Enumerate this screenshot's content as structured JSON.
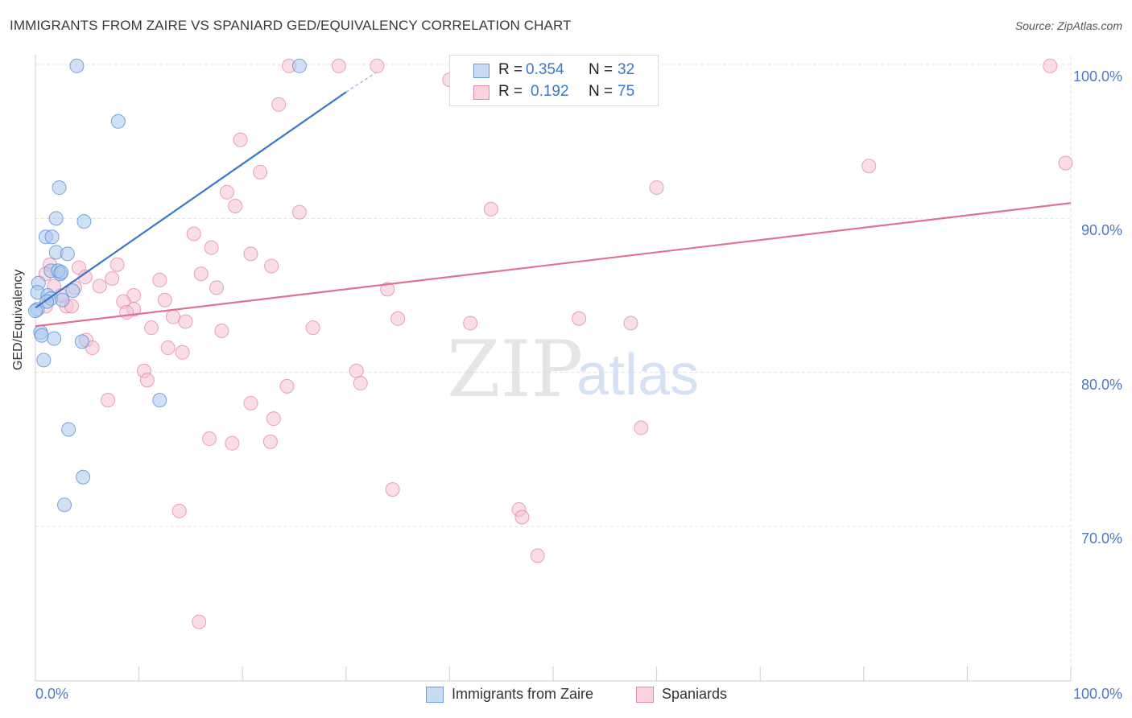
{
  "title": "IMMIGRANTS FROM ZAIRE VS SPANIARD GED/EQUIVALENCY CORRELATION CHART",
  "source": "Source: ZipAtlas.com",
  "watermark": {
    "zip": "ZIP",
    "atlas": "atlas"
  },
  "legend_top": {
    "rows": [
      {
        "r_label": "R =",
        "r_value": "0.354",
        "n_label": "N =",
        "n_value": "32"
      },
      {
        "r_label": "R =",
        "r_value": "0.192",
        "n_label": "N =",
        "n_value": "75"
      }
    ]
  },
  "legend_bottom": {
    "items": [
      {
        "label": "Immigrants from Zaire"
      },
      {
        "label": "Spaniards"
      }
    ]
  },
  "chart_data": {
    "type": "scatter",
    "title": "IMMIGRANTS FROM ZAIRE VS SPANIARD GED/EQUIVALENCY CORRELATION CHART",
    "xlabel": "",
    "ylabel": "GED/Equivalency",
    "xlim": [
      0,
      100
    ],
    "ylim": [
      60,
      100
    ],
    "x_tick_labels": [
      "0.0%",
      "100.0%"
    ],
    "y_ticks": [
      {
        "value": 100,
        "label": "100.0%"
      },
      {
        "value": 90,
        "label": "90.0%"
      },
      {
        "value": 80,
        "label": "80.0%"
      },
      {
        "value": 70,
        "label": "70.0%"
      }
    ],
    "grid": true,
    "legend_position": "bottom",
    "colors": {
      "series1_fill": "#a9c8ef",
      "series1_stroke": "#5b8fd6",
      "series1_line": "#3a77cf",
      "series2_fill": "#f6c3d3",
      "series2_stroke": "#e58aa8",
      "series2_line": "#e07097",
      "tick_text": "#4a7cc4",
      "grid": "#e3e3e3"
    },
    "series": [
      {
        "name": "Immigrants from Zaire",
        "r": 0.354,
        "n": 32,
        "trend": {
          "x": [
            0,
            30
          ],
          "y": [
            84.2,
            98.2
          ],
          "dash_to": [
            33.2,
            99.6
          ]
        },
        "points": [
          [
            4.0,
            99.9
          ],
          [
            25.5,
            99.9
          ],
          [
            8.0,
            96.3
          ],
          [
            2.3,
            92.0
          ],
          [
            2.0,
            90.0
          ],
          [
            4.7,
            89.8
          ],
          [
            1.0,
            88.8
          ],
          [
            1.6,
            88.8
          ],
          [
            2.0,
            87.8
          ],
          [
            3.1,
            87.7
          ],
          [
            1.5,
            86.6
          ],
          [
            2.4,
            86.4
          ],
          [
            2.2,
            86.6
          ],
          [
            2.5,
            86.5
          ],
          [
            0.3,
            85.8
          ],
          [
            0.2,
            85.2
          ],
          [
            1.2,
            85.0
          ],
          [
            3.6,
            85.3
          ],
          [
            1.5,
            84.8
          ],
          [
            2.6,
            84.7
          ],
          [
            1.1,
            84.6
          ],
          [
            0.2,
            84.1
          ],
          [
            0.5,
            82.6
          ],
          [
            0.6,
            82.4
          ],
          [
            1.8,
            82.2
          ],
          [
            4.5,
            82.0
          ],
          [
            0.8,
            80.8
          ],
          [
            12.0,
            78.2
          ],
          [
            3.2,
            76.3
          ],
          [
            4.6,
            73.2
          ],
          [
            2.8,
            71.4
          ],
          [
            0.0,
            84.0
          ]
        ]
      },
      {
        "name": "Spaniards",
        "r": 0.192,
        "n": 75,
        "trend": {
          "x": [
            0,
            100
          ],
          "y": [
            83.0,
            91.0
          ]
        },
        "points": [
          [
            24.5,
            99.9
          ],
          [
            29.3,
            99.9
          ],
          [
            33.0,
            99.9
          ],
          [
            40.8,
            99.9
          ],
          [
            98.0,
            99.9
          ],
          [
            45.0,
            99.9
          ],
          [
            23.5,
            97.4
          ],
          [
            19.8,
            95.1
          ],
          [
            21.7,
            93.0
          ],
          [
            60.0,
            92.0
          ],
          [
            80.5,
            93.4
          ],
          [
            99.5,
            93.6
          ],
          [
            18.5,
            91.7
          ],
          [
            19.3,
            90.8
          ],
          [
            25.5,
            90.4
          ],
          [
            44.0,
            90.6
          ],
          [
            15.3,
            89.0
          ],
          [
            17.0,
            88.1
          ],
          [
            20.8,
            87.7
          ],
          [
            7.9,
            87.0
          ],
          [
            22.8,
            86.9
          ],
          [
            1.4,
            87.0
          ],
          [
            4.2,
            86.8
          ],
          [
            1.0,
            86.4
          ],
          [
            16.0,
            86.4
          ],
          [
            4.8,
            86.2
          ],
          [
            7.4,
            86.1
          ],
          [
            12.0,
            86.0
          ],
          [
            1.8,
            85.6
          ],
          [
            6.2,
            85.6
          ],
          [
            3.8,
            85.5
          ],
          [
            17.5,
            85.5
          ],
          [
            34.0,
            85.4
          ],
          [
            9.5,
            85.0
          ],
          [
            8.5,
            84.6
          ],
          [
            12.5,
            84.7
          ],
          [
            1.0,
            84.3
          ],
          [
            3.0,
            84.3
          ],
          [
            3.5,
            84.3
          ],
          [
            9.5,
            84.1
          ],
          [
            8.8,
            83.9
          ],
          [
            13.3,
            83.6
          ],
          [
            14.5,
            83.3
          ],
          [
            35.0,
            83.5
          ],
          [
            52.5,
            83.5
          ],
          [
            42.0,
            83.2
          ],
          [
            57.5,
            83.2
          ],
          [
            11.2,
            82.9
          ],
          [
            26.8,
            82.9
          ],
          [
            18.0,
            82.7
          ],
          [
            4.9,
            82.1
          ],
          [
            5.5,
            81.6
          ],
          [
            12.8,
            81.6
          ],
          [
            14.2,
            81.3
          ],
          [
            10.5,
            80.1
          ],
          [
            31.0,
            80.1
          ],
          [
            10.8,
            79.5
          ],
          [
            31.4,
            79.3
          ],
          [
            24.3,
            79.1
          ],
          [
            7.0,
            78.2
          ],
          [
            20.8,
            78.0
          ],
          [
            23.0,
            77.0
          ],
          [
            58.5,
            76.4
          ],
          [
            16.8,
            75.7
          ],
          [
            19.0,
            75.4
          ],
          [
            22.7,
            75.5
          ],
          [
            34.5,
            72.4
          ],
          [
            46.7,
            71.1
          ],
          [
            47.0,
            70.6
          ],
          [
            13.9,
            71.0
          ],
          [
            48.5,
            68.1
          ],
          [
            15.8,
            63.8
          ],
          [
            40.0,
            99.0
          ],
          [
            47.5,
            99.9
          ],
          [
            2.5,
            85.0
          ]
        ]
      }
    ]
  }
}
